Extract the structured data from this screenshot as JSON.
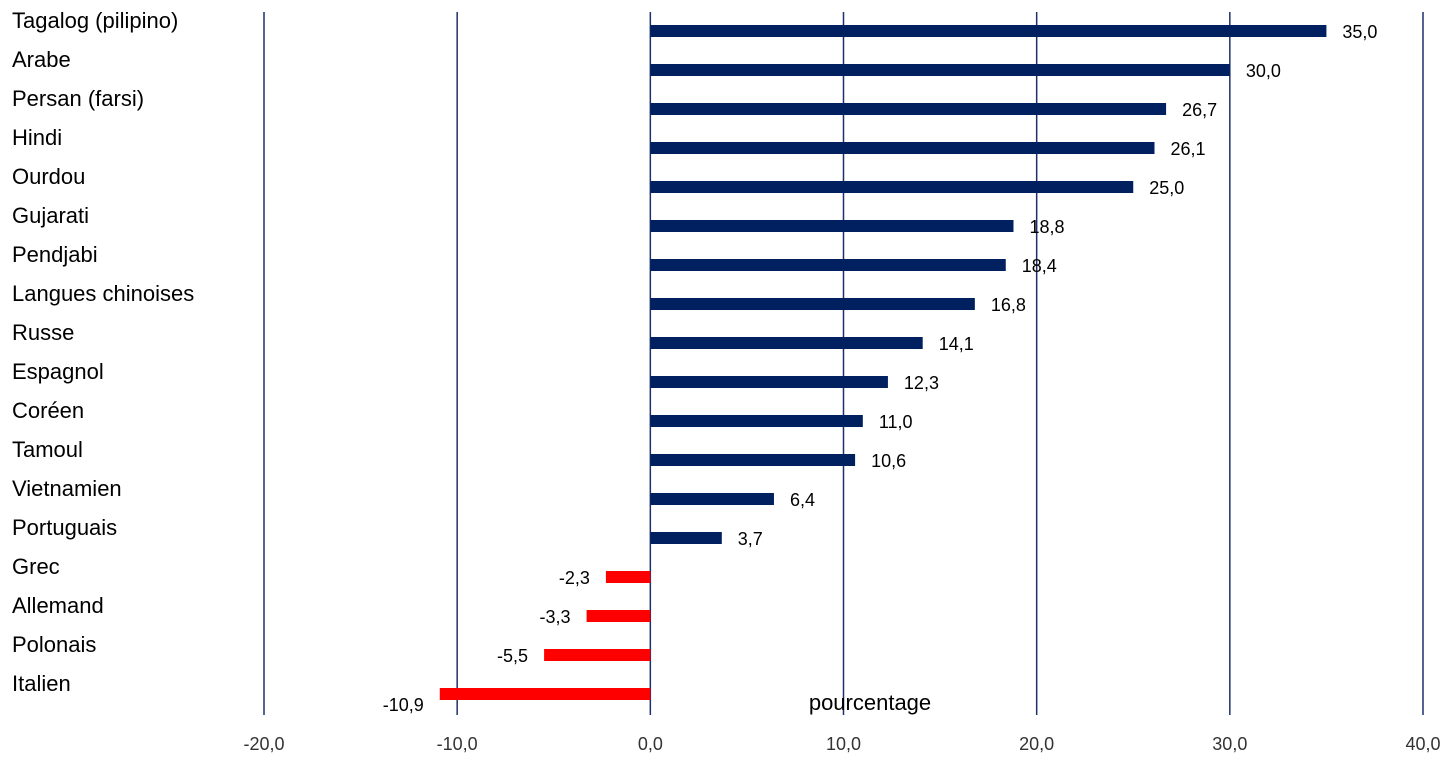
{
  "chart_data": {
    "type": "bar",
    "orientation": "horizontal",
    "x_label": "pourcentage",
    "categories": [
      "Tagalog (pilipino)",
      "Arabe",
      "Persan (farsi)",
      "Hindi",
      "Ourdou",
      "Gujarati",
      "Pendjabi",
      "Langues chinoises",
      "Russe",
      "Espagnol",
      "Coréen",
      "Tamoul",
      "Vietnamien",
      "Portuguais",
      "Grec",
      "Allemand",
      "Polonais",
      "Italien"
    ],
    "values": [
      35.0,
      30.0,
      26.7,
      26.1,
      25.0,
      18.8,
      18.4,
      16.8,
      14.1,
      12.3,
      11.0,
      10.6,
      6.4,
      3.7,
      -2.3,
      -3.3,
      -5.5,
      -10.9
    ],
    "value_labels": [
      "35,0",
      "30,0",
      "26,7",
      "26,1",
      "25,0",
      "18,8",
      "18,4",
      "16,8",
      "14,1",
      "12,3",
      "11,0",
      "10,6",
      "6,4",
      "3,7",
      "-2,3",
      "-3,3",
      "-5,5",
      "-10,9"
    ],
    "color": "#002060",
    "negative_color": "#ff0000",
    "xlim": [
      -20,
      40
    ],
    "xticks": [
      {
        "value": -20,
        "label": "-20,0"
      },
      {
        "value": -10,
        "label": "-10,0"
      },
      {
        "value": 0,
        "label": "0,0"
      },
      {
        "value": 10,
        "label": "10,0"
      },
      {
        "value": 20,
        "label": "20,0"
      },
      {
        "value": 30,
        "label": "30,0"
      },
      {
        "value": 40,
        "label": "40,0"
      }
    ],
    "grid": true
  }
}
